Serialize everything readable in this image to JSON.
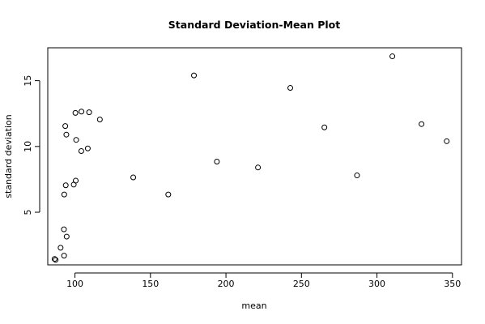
{
  "chart_data": {
    "type": "scatter",
    "title": "Standard Deviation-Mean Plot",
    "xlabel": "mean",
    "ylabel": "standard deviation",
    "xlim": [
      82,
      356
    ],
    "ylim": [
      1.0,
      17.5
    ],
    "xticks": [
      100,
      150,
      200,
      250,
      300,
      350
    ],
    "yticks": [
      5,
      10,
      15
    ],
    "grid": false,
    "legend": "none",
    "points": [
      {
        "x": 86.5,
        "y": 1.45
      },
      {
        "x": 87.2,
        "y": 1.38
      },
      {
        "x": 90.5,
        "y": 2.3
      },
      {
        "x": 92.8,
        "y": 1.7
      },
      {
        "x": 92.7,
        "y": 3.7
      },
      {
        "x": 94.5,
        "y": 3.15
      },
      {
        "x": 92.9,
        "y": 6.35
      },
      {
        "x": 93.9,
        "y": 7.05
      },
      {
        "x": 99.2,
        "y": 7.1
      },
      {
        "x": 100.5,
        "y": 7.4
      },
      {
        "x": 93.6,
        "y": 11.55
      },
      {
        "x": 94.3,
        "y": 10.9
      },
      {
        "x": 100.8,
        "y": 10.5
      },
      {
        "x": 100.3,
        "y": 12.55
      },
      {
        "x": 104.3,
        "y": 12.65
      },
      {
        "x": 109.4,
        "y": 12.6
      },
      {
        "x": 116.5,
        "y": 12.05
      },
      {
        "x": 104.2,
        "y": 9.65
      },
      {
        "x": 108.5,
        "y": 9.85
      },
      {
        "x": 138.6,
        "y": 7.65
      },
      {
        "x": 161.8,
        "y": 6.35
      },
      {
        "x": 178.8,
        "y": 15.4
      },
      {
        "x": 194.0,
        "y": 8.85
      },
      {
        "x": 221.2,
        "y": 8.4
      },
      {
        "x": 242.6,
        "y": 14.45
      },
      {
        "x": 265.2,
        "y": 11.45
      },
      {
        "x": 286.8,
        "y": 7.8
      },
      {
        "x": 310.2,
        "y": 16.85
      },
      {
        "x": 329.5,
        "y": 11.7
      },
      {
        "x": 346.2,
        "y": 10.4
      }
    ]
  }
}
